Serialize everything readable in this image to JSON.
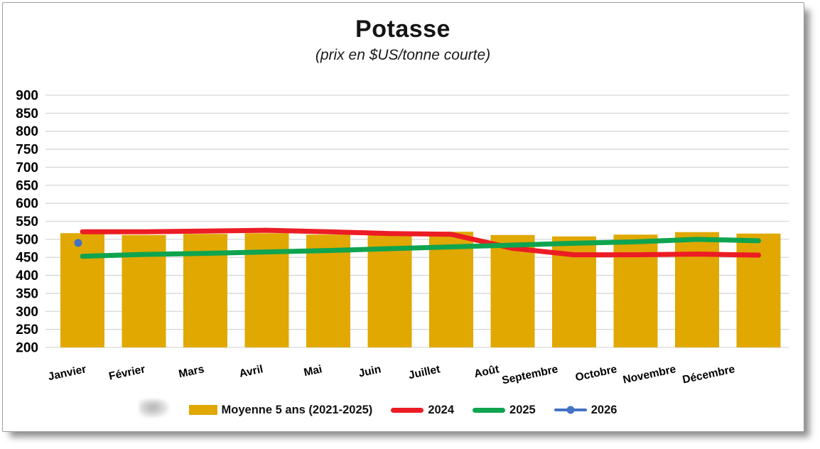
{
  "frame": {
    "background": "#FFFFFF",
    "border_color": "#9B9B9B"
  },
  "header": {
    "title": "Potasse",
    "subtitle": "(prix en $US/tonne courte)"
  },
  "chart_data": {
    "type": "bar",
    "combo": "bars with overlaid lines",
    "title": "Potasse",
    "subtitle": "(prix en $US/tonne courte)",
    "categories": [
      "Janvier",
      "Février",
      "Mars",
      "Avril",
      "Mai",
      "Juin",
      "Juillet",
      "Août",
      "Septembre",
      "Octobre",
      "Novembre",
      "Décembre"
    ],
    "ylim": [
      200,
      900
    ],
    "yticks": [
      900,
      850,
      800,
      750,
      700,
      650,
      600,
      550,
      500,
      450,
      400,
      350,
      300,
      250,
      200
    ],
    "grid": true,
    "gridline_color": "#D6D6D6",
    "legend_position": "bottom",
    "series": [
      {
        "name": "Moyenne 5 ans (2021-2025)",
        "type": "bar",
        "color": "#E0A800",
        "values": [
          517,
          512,
          515,
          517,
          513,
          511,
          521,
          512,
          508,
          513,
          520,
          516
        ]
      },
      {
        "name": "2024",
        "type": "line",
        "color": "#EC1C24",
        "values": [
          521,
          521,
          523,
          525,
          521,
          516,
          514,
          475,
          457,
          457,
          459,
          456
        ]
      },
      {
        "name": "2025",
        "type": "line",
        "color": "#0FA44F",
        "values": [
          453,
          458,
          461,
          465,
          469,
          474,
          479,
          484,
          489,
          493,
          500,
          496
        ]
      },
      {
        "name": "2026",
        "type": "line",
        "marker": true,
        "color": "#4472C4",
        "values": [
          490,
          null,
          null,
          null,
          null,
          null,
          null,
          null,
          null,
          null,
          null,
          null
        ]
      }
    ]
  }
}
